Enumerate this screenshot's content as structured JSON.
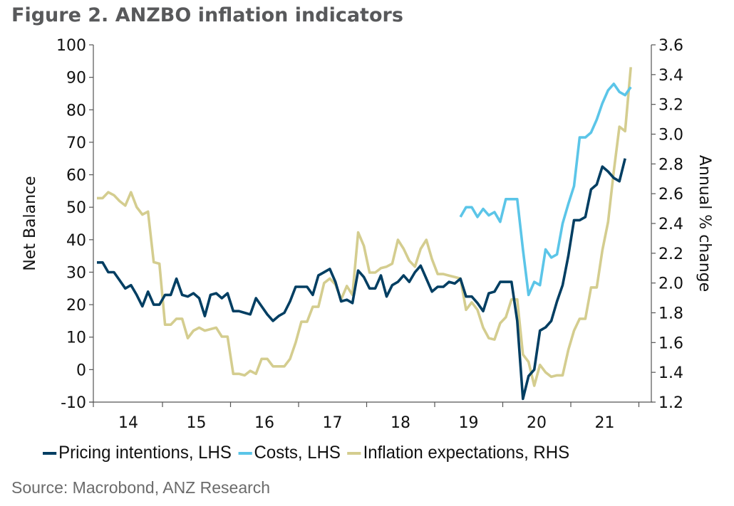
{
  "title": "Figure 2. ANZBO inflation indicators",
  "source": "Source: Macrobond, ANZ Research",
  "chart_data": {
    "type": "line",
    "title": "Figure 2. ANZBO inflation indicators",
    "xlabel": "",
    "ylabel": "Net Balance",
    "y2label": "Annual % change",
    "x_tick_labels": [
      "14",
      "15",
      "16",
      "17",
      "18",
      "19",
      "20",
      "21"
    ],
    "ylim": [
      -10,
      100
    ],
    "yticks": [
      -10,
      0,
      10,
      20,
      30,
      40,
      50,
      60,
      70,
      80,
      90,
      100
    ],
    "y2lim": [
      1.2,
      3.6
    ],
    "y2ticks": [
      "1.2",
      "1.4",
      "1.6",
      "1.8",
      "2.0",
      "2.2",
      "2.4",
      "2.6",
      "2.8",
      "3.0",
      "3.2",
      "3.4",
      "3.6"
    ],
    "x_start": "2014-01",
    "x_frequency": "monthly",
    "grid": false,
    "legend_position": "bottom",
    "series": [
      {
        "name": "Pricing intentions, LHS",
        "axis": "left",
        "color": "#003e62",
        "start_index": 0,
        "values": [
          33,
          33,
          30,
          30,
          27.5,
          25,
          26,
          23,
          19.5,
          24,
          20,
          20,
          23,
          23,
          28,
          23,
          22.5,
          23.5,
          22,
          16.5,
          23,
          23.5,
          22,
          23.5,
          18,
          18,
          17.5,
          17,
          22,
          19.5,
          17,
          15,
          16.5,
          17.5,
          21,
          25.5,
          25.5,
          25.5,
          23,
          29,
          30,
          31,
          27,
          21,
          21.5,
          20.5,
          30.5,
          28.5,
          25,
          25,
          29,
          22.5,
          26,
          27,
          29,
          27,
          30,
          32,
          28,
          24,
          25.5,
          25.5,
          27,
          26.5,
          28,
          22.5,
          22.5,
          20.5,
          18,
          23.5,
          24,
          27,
          27,
          27,
          15,
          -9,
          -2,
          0,
          12,
          13,
          15,
          21,
          26,
          35,
          46,
          46,
          47,
          55.5,
          57,
          62.5,
          61,
          59,
          58,
          65
        ]
      },
      {
        "name": "Costs, LHS",
        "axis": "left",
        "color": "#5bc5e8",
        "start_index": 64,
        "values": [
          47,
          50,
          50,
          47,
          49.5,
          47.5,
          48.5,
          45.5,
          52.5,
          52.5,
          52.5,
          37,
          23,
          27,
          26,
          37,
          34.5,
          35.5,
          45,
          51,
          56.5,
          71.5,
          71.5,
          73,
          77,
          82,
          86,
          88,
          85.5,
          84.5,
          87
        ]
      },
      {
        "name": "Inflation expectations, RHS",
        "axis": "right",
        "color": "#d4cd8f",
        "start_index": 0,
        "values": [
          2.57,
          2.57,
          2.61,
          2.59,
          2.55,
          2.52,
          2.61,
          2.51,
          2.46,
          2.48,
          2.14,
          2.13,
          1.72,
          1.72,
          1.76,
          1.76,
          1.63,
          1.68,
          1.7,
          1.68,
          1.69,
          1.7,
          1.64,
          1.64,
          1.39,
          1.39,
          1.38,
          1.41,
          1.39,
          1.49,
          1.49,
          1.44,
          1.44,
          1.44,
          1.49,
          1.6,
          1.74,
          1.74,
          1.84,
          1.84,
          2.0,
          2.03,
          1.99,
          1.89,
          1.98,
          1.92,
          2.34,
          2.25,
          2.07,
          2.07,
          2.1,
          2.11,
          2.13,
          2.29,
          2.23,
          2.15,
          2.11,
          2.23,
          2.29,
          2.16,
          2.06,
          2.06,
          2.05,
          2.04,
          2.03,
          1.82,
          1.87,
          1.82,
          1.7,
          1.63,
          1.62,
          1.73,
          1.77,
          1.89,
          1.89,
          1.52,
          1.47,
          1.31,
          1.45,
          1.4,
          1.37,
          1.38,
          1.38,
          1.55,
          1.68,
          1.76,
          1.76,
          1.97,
          1.97,
          2.22,
          2.41,
          2.75,
          3.05,
          3.02,
          3.45
        ]
      }
    ]
  }
}
